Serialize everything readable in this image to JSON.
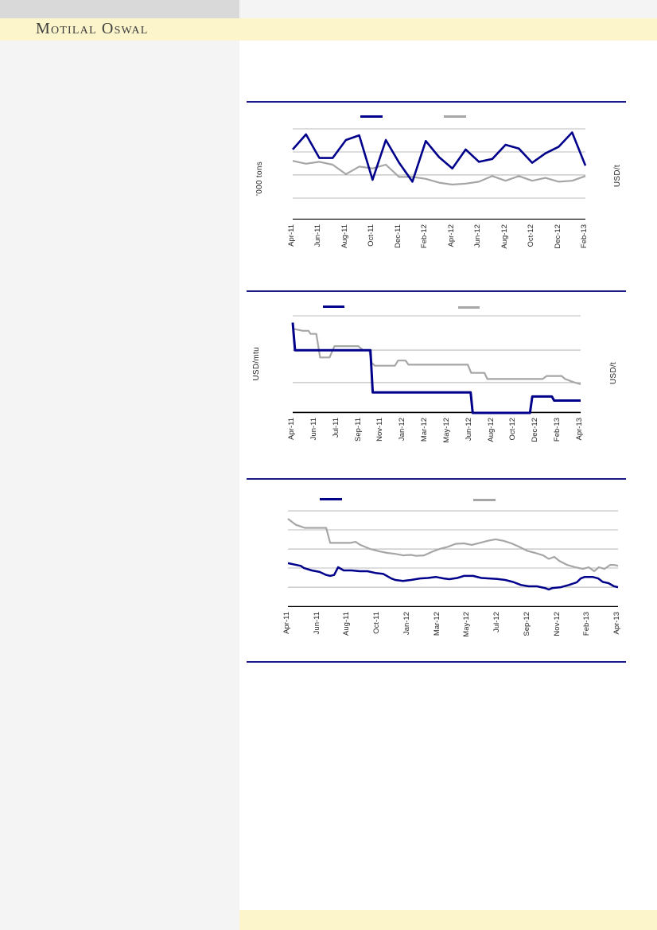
{
  "page": {
    "brand": "Motilal Oswal",
    "colors": {
      "navy": "#00008B",
      "gray_series": "#A6A6A6",
      "gridline": "#A6A6A6",
      "axis": "#000000",
      "section_rule": "#1A1A8C",
      "band_yellow": "#FCF5CC",
      "sidebar_gray": "#F4F4F5",
      "topbar_gray": "#D9D9D9",
      "logo_text": "#3C3C3C"
    }
  },
  "chart_data": [
    {
      "type": "line",
      "title": "",
      "ylabel_left": "'000 tons",
      "ylabel_right": "USD/t",
      "categories": [
        "Apr-11",
        "Jun-11",
        "Aug-11",
        "Oct-11",
        "Dec-11",
        "Feb-12",
        "Apr-12",
        "Jun-12",
        "Aug-12",
        "Oct-12",
        "Dec-12",
        "Feb-13"
      ],
      "legend_markers": [
        {
          "color": "#00008B",
          "label": ""
        },
        {
          "color": "#A6A6A6",
          "label": ""
        }
      ],
      "axis_note": "no numeric tick labels visible; values relative, 0 = x-axis, 100 = plot top",
      "ylim": [
        0,
        100
      ],
      "grid": true,
      "series": [
        {
          "name": "navy-series",
          "color": "#00008B",
          "values": [
            74,
            90,
            65,
            65,
            84,
            89,
            42,
            84,
            60,
            40,
            83,
            66,
            54,
            74,
            61,
            64,
            79,
            75,
            60,
            70,
            77,
            92,
            57
          ]
        },
        {
          "name": "gray-series",
          "color": "#A6A6A6",
          "values": [
            62,
            59,
            61,
            58,
            48,
            56,
            54,
            58,
            45,
            45,
            43,
            39,
            37,
            38,
            40,
            46,
            41,
            46,
            41,
            44,
            40,
            41,
            46
          ]
        }
      ]
    },
    {
      "type": "line",
      "title": "",
      "ylabel_left": "USD/mtu",
      "ylabel_right": "USD/t",
      "categories": [
        "Apr-11",
        "Jun-11",
        "Jul-11",
        "Sep-11",
        "Nov-11",
        "Jan-12",
        "Mar-12",
        "May-12",
        "Jun-12",
        "Aug-12",
        "Oct-12",
        "Dec-12",
        "Feb-13",
        "Apr-13"
      ],
      "legend_markers": [
        {
          "color": "#00008B",
          "label": ""
        },
        {
          "color": "#A6A6A6",
          "label": ""
        }
      ],
      "axis_note": "no numeric tick labels visible; stepped weekly-style series; values relative, 0 = x-axis, 100 = plot top",
      "ylim": [
        0,
        100
      ],
      "grid": true,
      "series": [
        {
          "name": "navy-series",
          "color": "#00008B",
          "points": [
            [
              0,
              88
            ],
            [
              0.008,
              61
            ],
            [
              0.27,
              61
            ],
            [
              0.278,
              20
            ],
            [
              0.618,
              20
            ],
            [
              0.625,
              0
            ],
            [
              0.824,
              0
            ],
            [
              0.832,
              16
            ],
            [
              0.9,
              16
            ],
            [
              0.908,
              12
            ],
            [
              1,
              12
            ]
          ]
        },
        {
          "name": "gray-series",
          "color": "#A6A6A6",
          "points": [
            [
              0,
              82
            ],
            [
              0.035,
              80
            ],
            [
              0.055,
              80
            ],
            [
              0.062,
              77
            ],
            [
              0.082,
              77
            ],
            [
              0.095,
              54
            ],
            [
              0.128,
              54
            ],
            [
              0.145,
              65
            ],
            [
              0.228,
              65
            ],
            [
              0.245,
              61
            ],
            [
              0.266,
              61
            ],
            [
              0.274,
              49
            ],
            [
              0.285,
              46
            ],
            [
              0.355,
              46
            ],
            [
              0.366,
              51
            ],
            [
              0.392,
              51
            ],
            [
              0.402,
              47
            ],
            [
              0.608,
              47
            ],
            [
              0.62,
              39
            ],
            [
              0.666,
              39
            ],
            [
              0.676,
              33
            ],
            [
              0.868,
              33
            ],
            [
              0.882,
              36
            ],
            [
              0.934,
              36
            ],
            [
              0.946,
              33
            ],
            [
              0.975,
              30
            ],
            [
              1,
              28
            ]
          ]
        }
      ]
    },
    {
      "type": "line",
      "title": "",
      "ylabel_left": "",
      "ylabel_right": "",
      "categories": [
        "Apr-11",
        "Jun-11",
        "Aug-11",
        "Oct-11",
        "Jan-12",
        "Mar-12",
        "May-12",
        "Jul-12",
        "Sep-12",
        "Nov-12",
        "Feb-13",
        "Apr-13"
      ],
      "legend_markers": [
        {
          "color": "#00008B",
          "label": ""
        },
        {
          "color": "#A6A6A6",
          "label": ""
        }
      ],
      "axis_note": "no numeric tick labels visible; values relative, 0 = x-axis, 100 = plot top",
      "ylim": [
        0,
        100
      ],
      "grid": true,
      "series": [
        {
          "name": "navy-series",
          "color": "#00008B",
          "points": [
            [
              0,
              43.7
            ],
            [
              0.039,
              41
            ],
            [
              0.048,
              39
            ],
            [
              0.072,
              36.5
            ],
            [
              0.096,
              35
            ],
            [
              0.116,
              32
            ],
            [
              0.128,
              31
            ],
            [
              0.14,
              32
            ],
            [
              0.152,
              39.7
            ],
            [
              0.169,
              36.5
            ],
            [
              0.193,
              36.5
            ],
            [
              0.217,
              35.7
            ],
            [
              0.241,
              35.7
            ],
            [
              0.265,
              34
            ],
            [
              0.289,
              33
            ],
            [
              0.313,
              28.5
            ],
            [
              0.325,
              27
            ],
            [
              0.349,
              26
            ],
            [
              0.373,
              27
            ],
            [
              0.4,
              28.5
            ],
            [
              0.424,
              29
            ],
            [
              0.448,
              30
            ],
            [
              0.472,
              28.5
            ],
            [
              0.489,
              27.8
            ],
            [
              0.513,
              29
            ],
            [
              0.533,
              31
            ],
            [
              0.561,
              31
            ],
            [
              0.586,
              29
            ],
            [
              0.61,
              28.5
            ],
            [
              0.634,
              28
            ],
            [
              0.658,
              27
            ],
            [
              0.682,
              25
            ],
            [
              0.706,
              22
            ],
            [
              0.73,
              20.6
            ],
            [
              0.754,
              20.6
            ],
            [
              0.778,
              19
            ],
            [
              0.79,
              17.5
            ],
            [
              0.802,
              19
            ],
            [
              0.827,
              19.8
            ],
            [
              0.851,
              22
            ],
            [
              0.875,
              24.6
            ],
            [
              0.887,
              28.5
            ],
            [
              0.899,
              30
            ],
            [
              0.923,
              30
            ],
            [
              0.94,
              28.5
            ],
            [
              0.954,
              25
            ],
            [
              0.971,
              23.8
            ],
            [
              0.988,
              20.6
            ],
            [
              1,
              19.8
            ]
          ]
        },
        {
          "name": "gray-series",
          "color": "#A6A6A6",
          "points": [
            [
              0,
              88
            ],
            [
              0.024,
              82
            ],
            [
              0.051,
              79
            ],
            [
              0.08,
              79
            ],
            [
              0.116,
              79
            ],
            [
              0.128,
              64
            ],
            [
              0.188,
              64
            ],
            [
              0.205,
              65
            ],
            [
              0.219,
              62
            ],
            [
              0.248,
              58
            ],
            [
              0.277,
              55.5
            ],
            [
              0.301,
              54
            ],
            [
              0.325,
              53
            ],
            [
              0.349,
              51.5
            ],
            [
              0.373,
              52
            ],
            [
              0.388,
              51
            ],
            [
              0.412,
              51.5
            ],
            [
              0.436,
              55
            ],
            [
              0.46,
              58
            ],
            [
              0.484,
              60
            ],
            [
              0.508,
              63
            ],
            [
              0.533,
              63.5
            ],
            [
              0.557,
              62
            ],
            [
              0.581,
              64
            ],
            [
              0.605,
              66
            ],
            [
              0.629,
              67.5
            ],
            [
              0.653,
              66
            ],
            [
              0.677,
              63.5
            ],
            [
              0.701,
              60
            ],
            [
              0.725,
              56
            ],
            [
              0.749,
              54
            ],
            [
              0.773,
              51.5
            ],
            [
              0.79,
              48
            ],
            [
              0.807,
              50
            ],
            [
              0.822,
              46
            ],
            [
              0.846,
              42
            ],
            [
              0.87,
              39.7
            ],
            [
              0.894,
              38
            ],
            [
              0.911,
              39.7
            ],
            [
              0.928,
              35.7
            ],
            [
              0.942,
              39.7
            ],
            [
              0.959,
              38
            ],
            [
              0.976,
              42
            ],
            [
              0.988,
              42
            ],
            [
              1,
              41
            ]
          ]
        }
      ]
    }
  ]
}
